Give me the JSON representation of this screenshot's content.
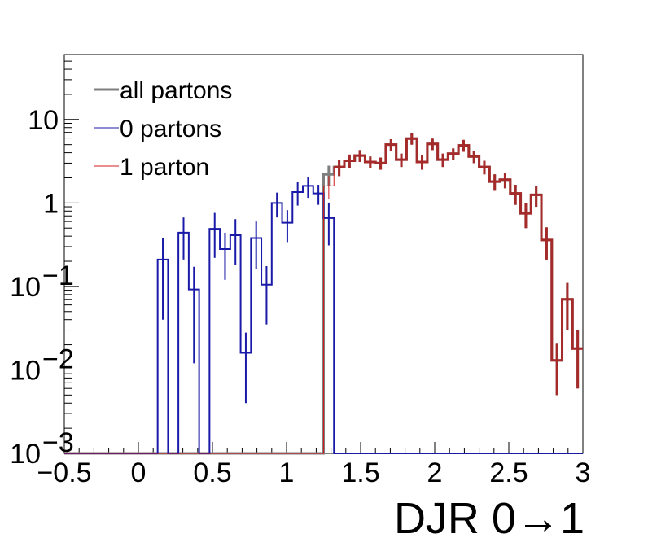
{
  "chart_data": {
    "type": "line",
    "xlabel": "DJR 0→1",
    "ylabel": "",
    "xlim": [
      -0.5,
      3
    ],
    "ylim": [
      0.001,
      60
    ],
    "yscale": "log",
    "legend_position": "top-left",
    "x_tick_labels": [
      {
        "value": -0.5,
        "label": "−0.5"
      },
      {
        "value": 0,
        "label": "0"
      },
      {
        "value": 0.5,
        "label": "0.5"
      },
      {
        "value": 1,
        "label": "1"
      },
      {
        "value": 1.5,
        "label": "1.5"
      },
      {
        "value": 2,
        "label": "2"
      },
      {
        "value": 2.5,
        "label": "2.5"
      },
      {
        "value": 3,
        "label": "3"
      }
    ],
    "y_tick_labels": [
      {
        "value": 0.001,
        "base": "10",
        "exp": "−3"
      },
      {
        "value": 0.01,
        "base": "10",
        "exp": "−2"
      },
      {
        "value": 0.1,
        "base": "10",
        "exp": "−1"
      },
      {
        "value": 1,
        "base": "1",
        "exp": ""
      },
      {
        "value": 10,
        "base": "10",
        "exp": ""
      }
    ],
    "bin_edges": [
      -0.5,
      -0.43,
      -0.36,
      -0.29,
      -0.22,
      -0.15,
      -0.08,
      -0.01,
      0.06,
      0.13,
      0.2,
      0.27,
      0.34,
      0.41,
      0.48,
      0.55,
      0.62,
      0.69,
      0.76,
      0.83,
      0.9,
      0.97,
      1.04,
      1.11,
      1.18,
      1.25,
      1.32,
      1.39,
      1.46,
      1.53,
      1.6,
      1.67,
      1.74,
      1.81,
      1.88,
      1.95,
      2.02,
      2.09,
      2.16,
      2.23,
      2.3,
      2.37,
      2.44,
      2.51,
      2.58,
      2.65,
      2.72,
      2.79,
      2.86,
      2.93,
      3.0
    ],
    "series": [
      {
        "name": "all partons",
        "color": "#7f7f7f",
        "values": [
          0.001,
          0.001,
          0.001,
          0.001,
          0.001,
          0.001,
          0.001,
          0.001,
          0.001,
          0.001,
          0.001,
          0.001,
          0.001,
          0.001,
          0.001,
          0.001,
          0.001,
          0.001,
          0.001,
          0.001,
          0.001,
          0.001,
          0.001,
          0.001,
          0.001,
          2.2,
          2.7,
          3.2,
          3.7,
          3.1,
          3.0,
          5.0,
          3.3,
          5.9,
          3.1,
          5.1,
          3.3,
          3.9,
          4.9,
          3.6,
          2.7,
          1.8,
          1.9,
          1.3,
          0.75,
          1.25,
          0.36,
          0.013,
          0.07,
          0.018
        ],
        "errors": [
          0,
          0,
          0,
          0,
          0,
          0,
          0,
          0,
          0,
          0,
          0,
          0,
          0,
          0,
          0,
          0,
          0,
          0,
          0,
          0,
          0,
          0,
          0,
          0,
          0,
          0.6,
          0.6,
          0.6,
          0.6,
          0.5,
          0.5,
          0.8,
          0.6,
          0.9,
          0.6,
          0.8,
          0.6,
          0.6,
          0.8,
          0.6,
          0.5,
          0.4,
          0.4,
          0.35,
          0.25,
          0.35,
          0.15,
          0.008,
          0.04,
          0.012
        ]
      },
      {
        "name": "0 partons",
        "color": "#1a1aa8",
        "values": [
          0.001,
          0.001,
          0.001,
          0.001,
          0.001,
          0.001,
          0.001,
          0.001,
          0.001,
          0.21,
          0.001,
          0.44,
          0.092,
          0.001,
          0.49,
          0.28,
          0.41,
          0.016,
          0.38,
          0.105,
          1.0,
          0.58,
          1.35,
          1.6,
          1.3,
          0.66,
          0.001,
          0.001,
          0.001,
          0.001,
          0.001,
          0.001,
          0.001,
          0.001,
          0.001,
          0.001,
          0.001,
          0.001,
          0.001,
          0.001,
          0.001,
          0.001,
          0.001,
          0.001,
          0.001,
          0.001,
          0.001,
          0.001,
          0.001,
          0.001
        ],
        "errors": [
          0,
          0,
          0,
          0,
          0,
          0,
          0,
          0,
          0,
          0.17,
          0,
          0.23,
          0.08,
          0,
          0.27,
          0.16,
          0.23,
          0.012,
          0.22,
          0.07,
          0.33,
          0.24,
          0.42,
          0.45,
          0.35,
          0.35,
          0,
          0,
          0,
          0,
          0,
          0,
          0,
          0,
          0,
          0,
          0,
          0,
          0,
          0,
          0,
          0,
          0,
          0,
          0,
          0,
          0,
          0,
          0,
          0
        ]
      },
      {
        "name": "1 parton",
        "color": "#d01c1c",
        "values": [
          0.001,
          0.001,
          0.001,
          0.001,
          0.001,
          0.001,
          0.001,
          0.001,
          0.001,
          0.001,
          0.001,
          0.001,
          0.001,
          0.001,
          0.001,
          0.001,
          0.001,
          0.001,
          0.001,
          0.001,
          0.001,
          0.001,
          0.001,
          0.001,
          0.001,
          1.6,
          2.7,
          3.2,
          3.7,
          3.1,
          3.0,
          5.0,
          3.3,
          5.9,
          3.1,
          5.1,
          3.3,
          3.9,
          4.9,
          3.6,
          2.7,
          1.8,
          1.9,
          1.3,
          0.75,
          1.25,
          0.36,
          0.013,
          0.07,
          0.018
        ],
        "errors": [
          0,
          0,
          0,
          0,
          0,
          0,
          0,
          0,
          0,
          0,
          0,
          0,
          0,
          0,
          0,
          0,
          0,
          0,
          0,
          0,
          0,
          0,
          0,
          0,
          0,
          0.5,
          0.6,
          0.6,
          0.6,
          0.5,
          0.5,
          0.8,
          0.6,
          0.9,
          0.6,
          0.8,
          0.6,
          0.6,
          0.8,
          0.6,
          0.5,
          0.4,
          0.4,
          0.35,
          0.25,
          0.35,
          0.15,
          0.008,
          0.04,
          0.012
        ]
      }
    ],
    "overlay_color": "#a52a2a"
  }
}
